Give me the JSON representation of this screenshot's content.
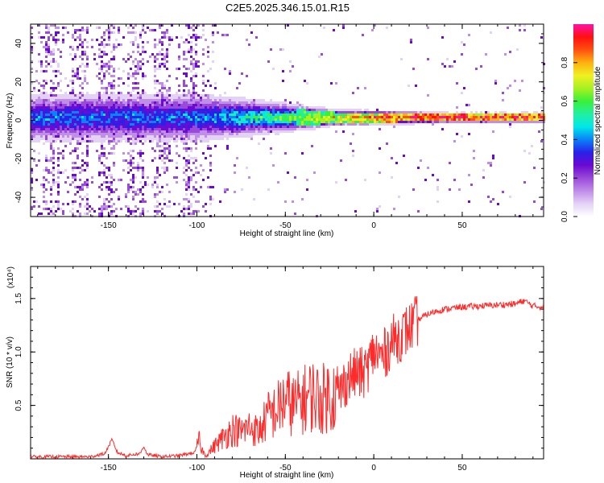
{
  "title": "C2E5.2025.346.15.01.R15",
  "colors": {
    "axis": "#000000",
    "snr_line": "#ff2a2a",
    "colormap": [
      "#ffffff",
      "#e3d2f6",
      "#c08de9",
      "#9a4ad8",
      "#6a0ad2",
      "#2a20e8",
      "#0a82f8",
      "#00e8e8",
      "#20f0a0",
      "#3af03a",
      "#a8f020",
      "#f0f020",
      "#ffb010",
      "#ff5010",
      "#ff1010",
      "#ff10a8"
    ]
  },
  "chart_data": [
    {
      "type": "heatmap",
      "name": "spectrogram",
      "xlabel": "Height of straight line (km)",
      "ylabel": "Frequency (Hz)",
      "xlim": [
        -194,
        96
      ],
      "ylim": [
        -50,
        50
      ],
      "xticks": [
        -150,
        -100,
        -50,
        0,
        50
      ],
      "xtick_labels": [
        "-150",
        "-100",
        "-50",
        "0",
        "50"
      ],
      "yticks": [
        -40,
        -20,
        0,
        20,
        40
      ],
      "ytick_labels": [
        "-40",
        "-20",
        "0",
        "20",
        "40"
      ],
      "colorbar": {
        "label": "Normalized spectral amplitude",
        "range": [
          0,
          1
        ],
        "ticks": [
          0.0,
          0.2,
          0.4,
          0.6,
          0.8
        ],
        "tick_labels": [
          "0.0",
          "0.2",
          "0.4",
          "0.6",
          "0.8"
        ]
      },
      "description_of_content": "Broadband noise for heights below about -100 km; a central frequency band near 0 Hz whose width narrows and amplitude increases with height, saturating above about 20 km."
    },
    {
      "type": "line",
      "name": "snr",
      "xlabel": "Height of straight line (km)",
      "ylabel": "SNR (10 * v/v)",
      "scale_label": "(x10⁴)",
      "xlim": [
        -194,
        96
      ],
      "ylim": [
        0,
        1.8
      ],
      "xticks": [
        -150,
        -100,
        -50,
        0,
        50
      ],
      "xtick_labels": [
        "-150",
        "-100",
        "-50",
        "0",
        "50"
      ],
      "yticks": [
        0.5,
        1.0,
        1.5
      ],
      "ytick_labels": [
        "0.5",
        "1.0",
        "1.5"
      ],
      "series": [
        {
          "name": "SNR",
          "x": [
            -194,
            -160,
            -152,
            -148,
            -145,
            -140,
            -132,
            -130,
            -128,
            -120,
            -110,
            -101,
            -99,
            -97,
            -95,
            -90,
            -85,
            -80,
            -75,
            -70,
            -65,
            -60,
            -55,
            -50,
            -45,
            -40,
            -35,
            -30,
            -25,
            -20,
            -15,
            -10,
            -5,
            0,
            5,
            10,
            15,
            20,
            25,
            30,
            35,
            40,
            50,
            60,
            70,
            80,
            85,
            90,
            96
          ],
          "y": [
            0.02,
            0.02,
            0.05,
            0.18,
            0.06,
            0.03,
            0.05,
            0.12,
            0.04,
            0.02,
            0.03,
            0.06,
            0.18,
            0.08,
            0.03,
            0.12,
            0.2,
            0.28,
            0.25,
            0.3,
            0.25,
            0.4,
            0.45,
            0.55,
            0.5,
            0.55,
            0.6,
            0.55,
            0.6,
            0.6,
            0.75,
            0.8,
            0.8,
            1.0,
            0.95,
            1.1,
            1.15,
            1.22,
            1.3,
            1.35,
            1.38,
            1.4,
            1.42,
            1.43,
            1.44,
            1.45,
            1.48,
            1.43,
            1.42
          ]
        }
      ]
    }
  ]
}
